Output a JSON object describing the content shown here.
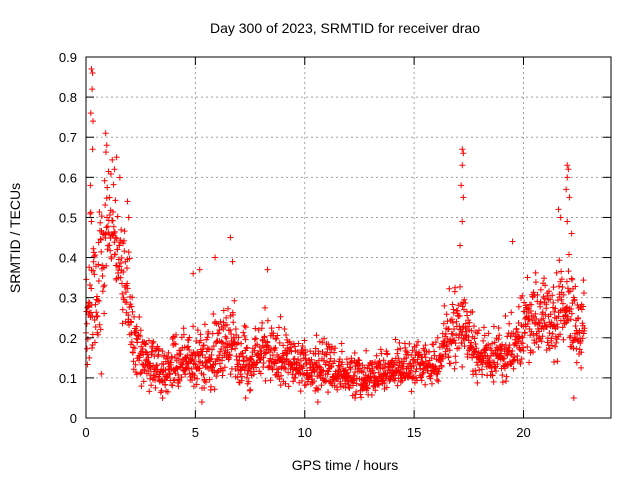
{
  "chart_data": {
    "type": "scatter",
    "title": "Day 300 of 2023, SRMTID for receiver drao",
    "xlabel": "GPS time / hours",
    "ylabel": "SRMTID / TECUs",
    "xlim": [
      0,
      24
    ],
    "ylim": [
      0,
      0.9
    ],
    "xticks": [
      0,
      5,
      10,
      15,
      20
    ],
    "yticks": [
      0,
      0.1,
      0.2,
      0.3,
      0.4,
      0.5,
      0.6,
      0.7,
      0.8,
      0.9
    ],
    "xtick_labels": [
      "0",
      "5",
      "10",
      "15",
      "20"
    ],
    "ytick_labels": [
      "0",
      "0.1",
      "0.2",
      "0.3",
      "0.4",
      "0.5",
      "0.6",
      "0.7",
      "0.8",
      "0.9"
    ],
    "grid": true,
    "marker": "+",
    "marker_color": "#ff0000",
    "point_count_note": "dense series sampled approx every 0.01 h from 0 to 22.8 h",
    "series": [
      {
        "name": "drao",
        "envelope": {
          "x": [
            0.0,
            0.2,
            0.5,
            0.8,
            1.0,
            1.3,
            1.6,
            1.9,
            2.2,
            2.6,
            3.0,
            3.4,
            3.8,
            4.2,
            4.6,
            5.0,
            5.5,
            6.0,
            6.5,
            7.0,
            7.5,
            8.0,
            8.5,
            9.0,
            9.5,
            10.0,
            10.5,
            11.0,
            11.5,
            12.0,
            12.5,
            13.0,
            13.5,
            14.0,
            14.5,
            15.0,
            15.5,
            16.0,
            16.5,
            17.0,
            17.3,
            17.6,
            18.0,
            18.5,
            19.0,
            19.5,
            20.0,
            20.5,
            21.0,
            21.5,
            22.0,
            22.3,
            22.6,
            22.8
          ],
          "median": [
            0.25,
            0.3,
            0.28,
            0.38,
            0.5,
            0.45,
            0.38,
            0.3,
            0.17,
            0.15,
            0.14,
            0.1,
            0.12,
            0.13,
            0.14,
            0.13,
            0.14,
            0.16,
            0.17,
            0.15,
            0.14,
            0.17,
            0.16,
            0.15,
            0.14,
            0.12,
            0.13,
            0.12,
            0.11,
            0.11,
            0.1,
            0.1,
            0.11,
            0.12,
            0.12,
            0.12,
            0.13,
            0.14,
            0.2,
            0.22,
            0.23,
            0.18,
            0.16,
            0.15,
            0.15,
            0.17,
            0.22,
            0.24,
            0.25,
            0.24,
            0.28,
            0.22,
            0.2,
            0.24
          ],
          "spread": [
            0.1,
            0.12,
            0.13,
            0.14,
            0.12,
            0.1,
            0.1,
            0.1,
            0.06,
            0.06,
            0.05,
            0.05,
            0.05,
            0.05,
            0.06,
            0.06,
            0.06,
            0.07,
            0.07,
            0.06,
            0.06,
            0.06,
            0.06,
            0.06,
            0.05,
            0.05,
            0.05,
            0.05,
            0.04,
            0.04,
            0.04,
            0.04,
            0.04,
            0.04,
            0.04,
            0.04,
            0.04,
            0.05,
            0.07,
            0.08,
            0.08,
            0.06,
            0.05,
            0.05,
            0.05,
            0.06,
            0.07,
            0.08,
            0.08,
            0.08,
            0.09,
            0.08,
            0.07,
            0.06
          ]
        },
        "outliers": [
          {
            "x": 0.25,
            "y": 0.87
          },
          {
            "x": 0.3,
            "y": 0.86
          },
          {
            "x": 0.28,
            "y": 0.82
          },
          {
            "x": 0.22,
            "y": 0.76
          },
          {
            "x": 0.32,
            "y": 0.74
          },
          {
            "x": 0.3,
            "y": 0.67
          },
          {
            "x": 0.2,
            "y": 0.58
          },
          {
            "x": 0.25,
            "y": 0.49
          },
          {
            "x": 0.9,
            "y": 0.71
          },
          {
            "x": 0.95,
            "y": 0.68
          },
          {
            "x": 1.4,
            "y": 0.65
          },
          {
            "x": 1.3,
            "y": 0.62
          },
          {
            "x": 1.9,
            "y": 0.54
          },
          {
            "x": 1.95,
            "y": 0.5
          },
          {
            "x": 4.9,
            "y": 0.36
          },
          {
            "x": 5.2,
            "y": 0.37
          },
          {
            "x": 5.9,
            "y": 0.4
          },
          {
            "x": 6.6,
            "y": 0.45
          },
          {
            "x": 6.7,
            "y": 0.39
          },
          {
            "x": 8.3,
            "y": 0.37
          },
          {
            "x": 17.2,
            "y": 0.67
          },
          {
            "x": 17.25,
            "y": 0.66
          },
          {
            "x": 17.2,
            "y": 0.63
          },
          {
            "x": 17.15,
            "y": 0.58
          },
          {
            "x": 17.25,
            "y": 0.55
          },
          {
            "x": 17.2,
            "y": 0.49
          },
          {
            "x": 17.1,
            "y": 0.43
          },
          {
            "x": 19.5,
            "y": 0.44
          },
          {
            "x": 21.6,
            "y": 0.52
          },
          {
            "x": 21.7,
            "y": 0.5
          },
          {
            "x": 22.0,
            "y": 0.63
          },
          {
            "x": 22.05,
            "y": 0.62
          },
          {
            "x": 22.0,
            "y": 0.6
          },
          {
            "x": 21.95,
            "y": 0.57
          },
          {
            "x": 22.1,
            "y": 0.55
          },
          {
            "x": 22.0,
            "y": 0.49
          },
          {
            "x": 22.2,
            "y": 0.46
          },
          {
            "x": 22.3,
            "y": 0.05
          },
          {
            "x": 5.3,
            "y": 0.04
          },
          {
            "x": 3.5,
            "y": 0.05
          },
          {
            "x": 7.3,
            "y": 0.05
          },
          {
            "x": 10.6,
            "y": 0.04
          },
          {
            "x": 12.3,
            "y": 0.05
          },
          {
            "x": 0.7,
            "y": 0.11
          },
          {
            "x": 0.15,
            "y": 0.15
          }
        ]
      }
    ]
  }
}
